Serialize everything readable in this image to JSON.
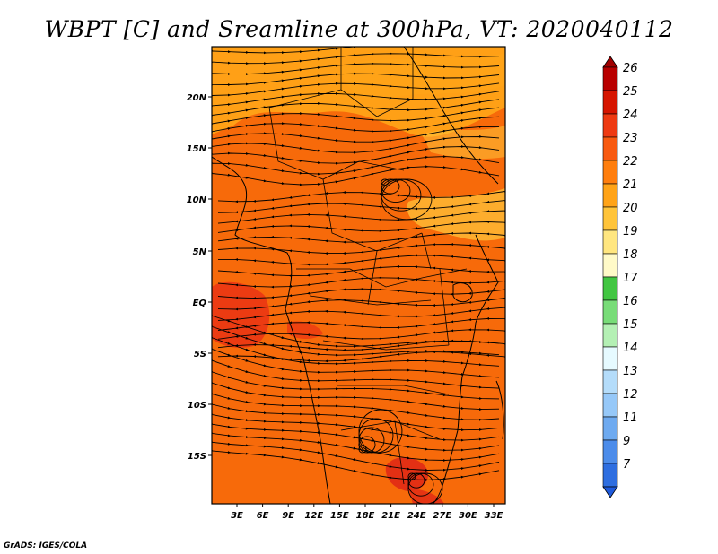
{
  "title": "WBPT [C] and Sreamline at 300hPa, VT: 2020040112",
  "credit": "GrADS: IGES/COLA",
  "map": {
    "field": "WBPT [C]",
    "level": "300hPa",
    "valid_time": "2020040112",
    "lon_range": [
      0,
      35
    ],
    "lat_range": [
      -20,
      24
    ],
    "lat_ticks": [
      "20N",
      "15N",
      "10N",
      "5N",
      "EQ",
      "5S",
      "10S",
      "15S"
    ],
    "lon_ticks": [
      "3E",
      "6E",
      "9E",
      "12E",
      "15E",
      "18E",
      "21E",
      "24E",
      "27E",
      "30E",
      "33E"
    ],
    "dominant_fill_color": "#F76A0A",
    "regions": [
      {
        "label": "warm core west equatorial",
        "color": "#EC3B12"
      },
      {
        "label": "warm spot south",
        "color": "#E33014"
      },
      {
        "label": "cooler band north",
        "color": "#FFA317"
      },
      {
        "label": "cool patch east",
        "color": "#FFC43A"
      }
    ]
  },
  "colorbar": {
    "levels": [
      {
        "label": "26",
        "color": "#B80000"
      },
      {
        "label": "25",
        "color": "#D61500"
      },
      {
        "label": "24",
        "color": "#EE3A12"
      },
      {
        "label": "23",
        "color": "#F85A10"
      },
      {
        "label": "22",
        "color": "#FF7E0D"
      },
      {
        "label": "21",
        "color": "#FFA317"
      },
      {
        "label": "20",
        "color": "#FFC43A"
      },
      {
        "label": "19",
        "color": "#FFE680"
      },
      {
        "label": "18",
        "color": "#FFFAC8"
      },
      {
        "label": "17",
        "color": "#42C642"
      },
      {
        "label": "16",
        "color": "#78DC78"
      },
      {
        "label": "15",
        "color": "#B4F0B4"
      },
      {
        "label": "14",
        "color": "#E6FAFF"
      },
      {
        "label": "13",
        "color": "#B4DCFA"
      },
      {
        "label": "12",
        "color": "#96C8F8"
      },
      {
        "label": "11",
        "color": "#6EAAF0"
      },
      {
        "label": "9",
        "color": "#4C8CEA"
      },
      {
        "label": "7",
        "color": "#2E6EE0"
      }
    ],
    "top_arrow_color": "#A00000",
    "bottom_arrow_color": "#1E5ADC"
  }
}
